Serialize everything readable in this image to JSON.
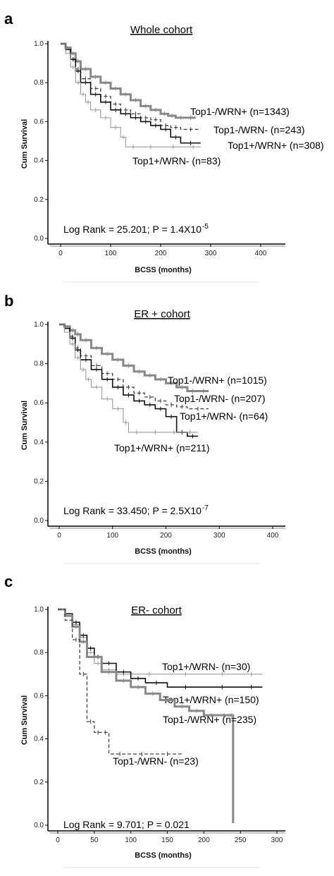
{
  "chart_data": [
    {
      "panel": "a",
      "type": "line",
      "title": "Whole cohort",
      "xlabel": "BCSS (months)",
      "ylabel": "Cum Survival",
      "xlim": [
        0,
        400
      ],
      "ylim": [
        0,
        1
      ],
      "xticks": [
        0,
        100,
        200,
        300,
        400
      ],
      "yticks": [
        0.0,
        0.2,
        0.4,
        0.6,
        0.8,
        1.0
      ],
      "stat_prefix": "Log Rank = 25.201; P = 1.4X10",
      "stat_exp": "-5",
      "series": [
        {
          "name": "Top1-/WRN+ (n=1343)",
          "color": "#888888",
          "style": "thick",
          "x": [
            0,
            10,
            20,
            30,
            40,
            60,
            80,
            100,
            120,
            140,
            160,
            180,
            200,
            215,
            230,
            250,
            270
          ],
          "y": [
            1.0,
            0.98,
            0.95,
            0.91,
            0.87,
            0.83,
            0.8,
            0.77,
            0.74,
            0.71,
            0.68,
            0.66,
            0.64,
            0.63,
            0.62,
            0.62,
            0.62
          ]
        },
        {
          "name": "Top1-/WRN- (n=243)",
          "color": "#444444",
          "style": "dashed",
          "x": [
            0,
            10,
            20,
            30,
            40,
            60,
            80,
            100,
            120,
            140,
            160,
            180,
            200,
            220,
            240,
            280
          ],
          "y": [
            1.0,
            0.97,
            0.92,
            0.87,
            0.82,
            0.77,
            0.73,
            0.69,
            0.66,
            0.64,
            0.62,
            0.61,
            0.58,
            0.57,
            0.56,
            0.56
          ]
        },
        {
          "name": "Top1+/WRN+ (n=308)",
          "color": "#111111",
          "style": "solid",
          "x": [
            0,
            10,
            20,
            30,
            40,
            60,
            80,
            100,
            120,
            140,
            160,
            180,
            200,
            220,
            240,
            280
          ],
          "y": [
            1.0,
            0.97,
            0.92,
            0.86,
            0.8,
            0.74,
            0.7,
            0.66,
            0.64,
            0.62,
            0.6,
            0.58,
            0.56,
            0.52,
            0.49,
            0.49
          ]
        },
        {
          "name": "Top1+/WRN- (n=83)",
          "color": "#999999",
          "style": "thin",
          "x": [
            0,
            10,
            20,
            30,
            40,
            50,
            60,
            80,
            100,
            120,
            130,
            160,
            200,
            250,
            280
          ],
          "y": [
            1.0,
            0.95,
            0.88,
            0.8,
            0.74,
            0.7,
            0.66,
            0.62,
            0.57,
            0.52,
            0.47,
            0.47,
            0.47,
            0.47,
            0.47
          ]
        }
      ]
    },
    {
      "panel": "b",
      "type": "line",
      "title": "ER + cohort",
      "xlabel": "BCSS (months)",
      "ylabel": "Cum Survival",
      "xlim": [
        0,
        400
      ],
      "ylim": [
        0,
        1
      ],
      "xticks": [
        0,
        100,
        200,
        300,
        400
      ],
      "yticks": [
        0.0,
        0.2,
        0.4,
        0.6,
        0.8,
        1.0
      ],
      "stat_prefix": "Log Rank = 33.450; P = 2.5X10",
      "stat_exp": "-7",
      "series": [
        {
          "name": "Top1-/WRN+ (n=1015)",
          "color": "#888888",
          "style": "thick",
          "x": [
            0,
            10,
            20,
            30,
            40,
            60,
            80,
            100,
            120,
            140,
            160,
            180,
            200,
            220,
            240,
            260,
            280
          ],
          "y": [
            1.0,
            0.99,
            0.97,
            0.95,
            0.92,
            0.88,
            0.85,
            0.82,
            0.79,
            0.76,
            0.74,
            0.72,
            0.7,
            0.68,
            0.66,
            0.66,
            0.66
          ]
        },
        {
          "name": "Top1-/WRN- (n=207)",
          "color": "#444444",
          "style": "dashed",
          "x": [
            0,
            10,
            20,
            30,
            40,
            60,
            80,
            100,
            120,
            140,
            160,
            180,
            200,
            220,
            240,
            280
          ],
          "y": [
            1.0,
            0.98,
            0.94,
            0.88,
            0.84,
            0.79,
            0.75,
            0.72,
            0.68,
            0.65,
            0.63,
            0.61,
            0.59,
            0.58,
            0.57,
            0.57
          ]
        },
        {
          "name": "Top1+/WRN- (n=64)",
          "color": "#111111",
          "style": "solid",
          "x": [
            0,
            10,
            20,
            30,
            40,
            60,
            80,
            100,
            120,
            140,
            160,
            180,
            200,
            220,
            240,
            260
          ],
          "y": [
            1.0,
            0.98,
            0.93,
            0.87,
            0.82,
            0.77,
            0.72,
            0.68,
            0.64,
            0.61,
            0.59,
            0.57,
            0.53,
            0.45,
            0.43,
            0.43
          ]
        },
        {
          "name": "Top1+/WRN+ (n=211)",
          "color": "#999999",
          "style": "thin",
          "x": [
            0,
            10,
            20,
            30,
            40,
            50,
            60,
            80,
            100,
            120,
            130,
            160,
            200,
            230,
            260
          ],
          "y": [
            1.0,
            0.96,
            0.9,
            0.83,
            0.77,
            0.72,
            0.68,
            0.62,
            0.57,
            0.5,
            0.45,
            0.45,
            0.45,
            0.45,
            0.45
          ]
        }
      ]
    },
    {
      "panel": "c",
      "type": "line",
      "title": "ER- cohort",
      "xlabel": "BCSS (months)",
      "ylabel": "Cum Survival",
      "xlim": [
        0,
        300
      ],
      "ylim": [
        0,
        1
      ],
      "xticks": [
        0,
        50,
        100,
        150,
        200,
        250,
        300
      ],
      "yticks": [
        0.0,
        0.2,
        0.4,
        0.6,
        0.8,
        1.0
      ],
      "stat_prefix": "Log Rank = 9.701; P = 0.021",
      "stat_exp": "",
      "series": [
        {
          "name": "Top1+/WRN- (n=30)",
          "color": "#999999",
          "style": "thin",
          "x": [
            0,
            10,
            20,
            30,
            40,
            50,
            60,
            80,
            100,
            150,
            200,
            250,
            280
          ],
          "y": [
            1.0,
            0.97,
            0.93,
            0.87,
            0.8,
            0.75,
            0.72,
            0.7,
            0.7,
            0.7,
            0.7,
            0.7,
            0.7
          ]
        },
        {
          "name": "Top1+/WRN+ (n=150)",
          "color": "#111111",
          "style": "solid",
          "x": [
            0,
            10,
            20,
            30,
            40,
            50,
            60,
            80,
            100,
            120,
            150,
            200,
            250,
            280
          ],
          "y": [
            1.0,
            0.98,
            0.94,
            0.88,
            0.82,
            0.78,
            0.75,
            0.71,
            0.68,
            0.66,
            0.64,
            0.64,
            0.64,
            0.64
          ]
        },
        {
          "name": "Top1-/WRN+ (n=235)",
          "color": "#888888",
          "style": "thick",
          "x": [
            0,
            10,
            20,
            30,
            40,
            60,
            80,
            100,
            120,
            140,
            160,
            180,
            200,
            220,
            235,
            240
          ],
          "y": [
            1.0,
            0.97,
            0.92,
            0.85,
            0.78,
            0.71,
            0.67,
            0.64,
            0.61,
            0.58,
            0.55,
            0.53,
            0.51,
            0.51,
            0.51,
            0.01
          ]
        },
        {
          "name": "Top1-/WRN- (n=23)",
          "color": "#444444",
          "style": "dashed",
          "x": [
            0,
            10,
            20,
            30,
            40,
            50,
            60,
            70,
            100,
            130,
            170
          ],
          "y": [
            1.0,
            0.95,
            0.86,
            0.7,
            0.48,
            0.43,
            0.43,
            0.33,
            0.33,
            0.33,
            0.33
          ]
        }
      ]
    }
  ],
  "panel_labels": [
    "a",
    "b",
    "c"
  ]
}
